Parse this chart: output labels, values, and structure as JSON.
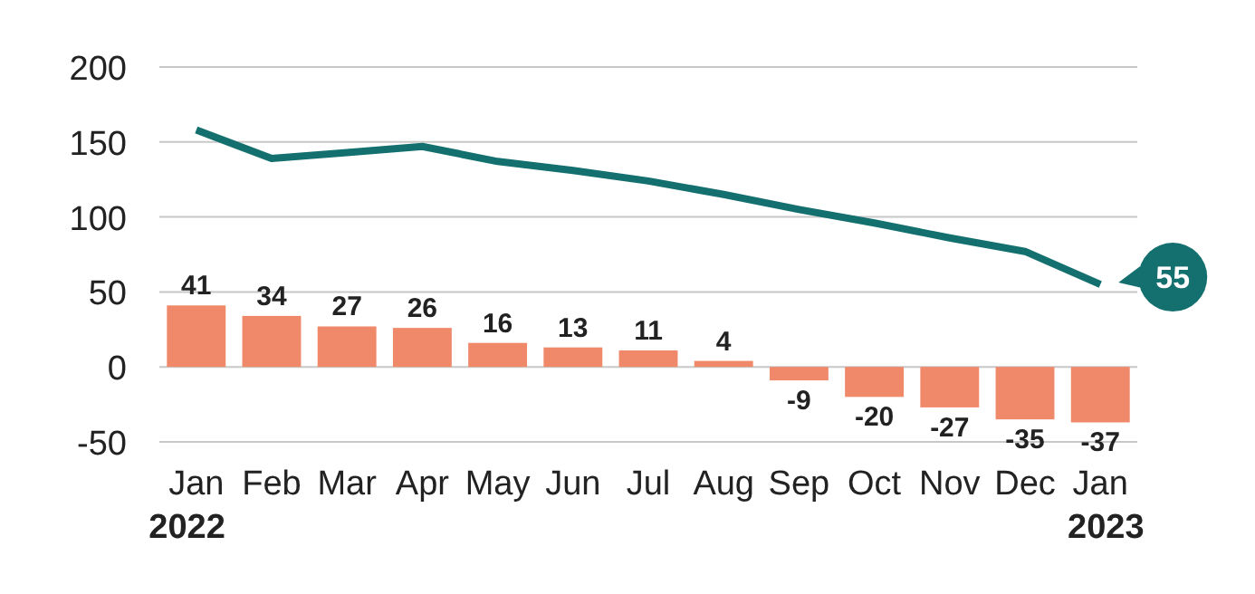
{
  "chart_data": {
    "type": "bar",
    "categories": [
      "Jan",
      "Feb",
      "Mar",
      "Apr",
      "May",
      "Jun",
      "Jul",
      "Aug",
      "Sep",
      "Oct",
      "Nov",
      "Dec",
      "Jan"
    ],
    "series": [
      {
        "color": "#f0886a",
        "values": [
          41,
          34,
          27,
          26,
          16,
          13,
          11,
          4,
          -9,
          -20,
          -27,
          -35,
          -37
        ],
        "value_labels": [
          "41",
          "34",
          "27",
          "26",
          "16",
          "13",
          "11",
          "4",
          "-9",
          "-20",
          "-27",
          "-35",
          "-37"
        ]
      },
      {
        "type": "line",
        "color": "#13706f",
        "values": [
          158,
          139,
          143,
          147,
          137,
          131,
          124,
          115,
          105,
          96,
          86,
          77,
          55
        ],
        "value_labels": [
          null,
          null,
          null,
          null,
          null,
          null,
          null,
          null,
          null,
          null,
          null,
          null,
          "55"
        ]
      }
    ],
    "ylim": [
      -50,
      200
    ],
    "yticks": [
      -50,
      0,
      50,
      100,
      150,
      200
    ],
    "grid": "y",
    "annotations": [
      "2022",
      "2023"
    ]
  }
}
